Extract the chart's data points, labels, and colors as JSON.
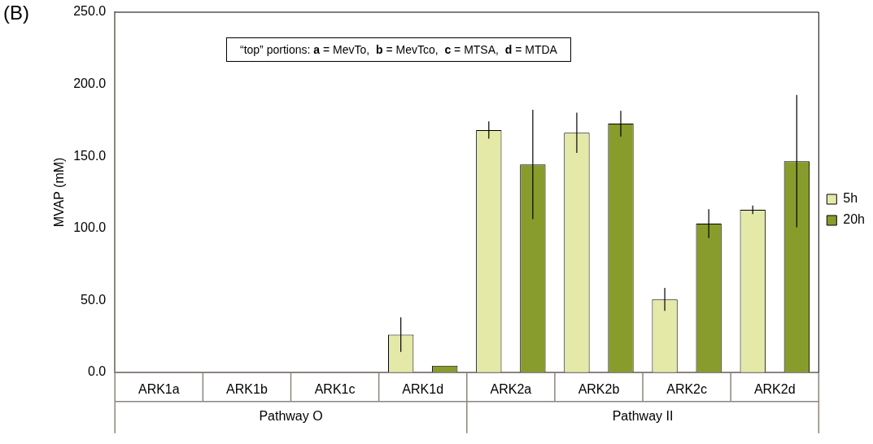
{
  "chart_data": {
    "type": "bar",
    "title": "(B)",
    "ylabel": "MVAP (mM)",
    "categories": [
      "ARK1a",
      "ARK1b",
      "ARK1c",
      "ARK1d",
      "ARK2a",
      "ARK2b",
      "ARK2c",
      "ARK2d"
    ],
    "series": [
      {
        "name": "5h",
        "color": "#e4e9a8",
        "values": [
          0,
          0,
          0,
          26.2,
          168.2,
          166.3,
          50.6,
          112.8
        ],
        "errors": [
          null,
          null,
          null,
          12,
          6,
          14,
          8,
          3
        ]
      },
      {
        "name": "20h",
        "color": "#879c2b",
        "values": [
          0,
          0,
          0,
          4.6,
          144.3,
          172.6,
          103.2,
          146.6
        ],
        "errors": [
          null,
          null,
          null,
          null,
          38,
          9,
          10,
          46
        ]
      }
    ],
    "ylim": [
      0,
      250
    ],
    "yticks": [
      {
        "value": 0,
        "label": "0.0"
      },
      {
        "value": 50,
        "label": "50.0"
      },
      {
        "value": 100,
        "label": "100.0"
      },
      {
        "value": 150,
        "label": "150.0"
      },
      {
        "value": 200,
        "label": "200.0"
      },
      {
        "value": 250,
        "label": "250.0"
      }
    ],
    "annotations": [
      "“top” portions: a = MevTo,  b = MevTco,  c = MTSA,  d = MTDA",
      "Pathway O",
      "Pathway II"
    ],
    "grid": false,
    "legend": "right"
  }
}
